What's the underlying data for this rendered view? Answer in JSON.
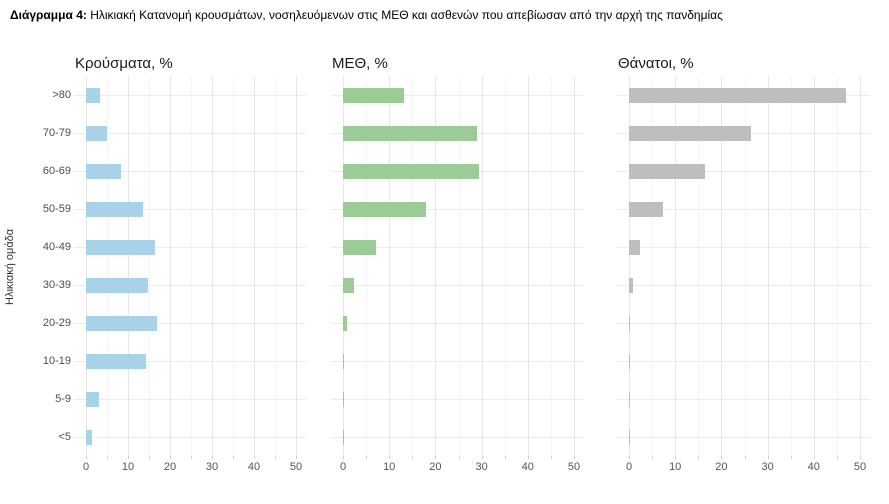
{
  "caption": {
    "label": "Διάγραμμα 4:",
    "text": "Ηλικιακή Κατανομή κρουσμάτων, νοσηλευόμενων στις ΜΕΘ και ασθενών που απεβίωσαν από την αρχή της πανδημίας"
  },
  "chart_data": {
    "type": "bar",
    "orientation": "horizontal",
    "ylabel": "Ηλικιακή ομάδα",
    "xlabel": "",
    "xlim": [
      0,
      50
    ],
    "x_ticks": [
      0,
      10,
      20,
      30,
      40,
      50
    ],
    "grid": "on",
    "legend": "none",
    "categories_top_to_bottom": [
      ">80",
      "70-79",
      "60-69",
      "50-59",
      "40-49",
      "30-39",
      "20-29",
      "10-19",
      "5-9",
      "<5"
    ],
    "panels": [
      {
        "title": "Κρούσματα, %",
        "color": "#a8d2e8",
        "values": [
          3.4,
          5.0,
          8.3,
          13.6,
          16.4,
          14.8,
          16.8,
          14.2,
          3.2,
          1.5
        ]
      },
      {
        "title": "ΜΕΘ, %",
        "color": "#9ccc96",
        "values": [
          13.1,
          29.0,
          29.5,
          18.0,
          7.2,
          2.3,
          0.8,
          0.2,
          0.2,
          0.2
        ]
      },
      {
        "title": "Θάνατοι, %",
        "color": "#bebebe",
        "values": [
          47.0,
          26.5,
          16.4,
          7.3,
          2.4,
          0.9,
          0.3,
          0.2,
          0.1,
          0.2
        ]
      }
    ]
  }
}
